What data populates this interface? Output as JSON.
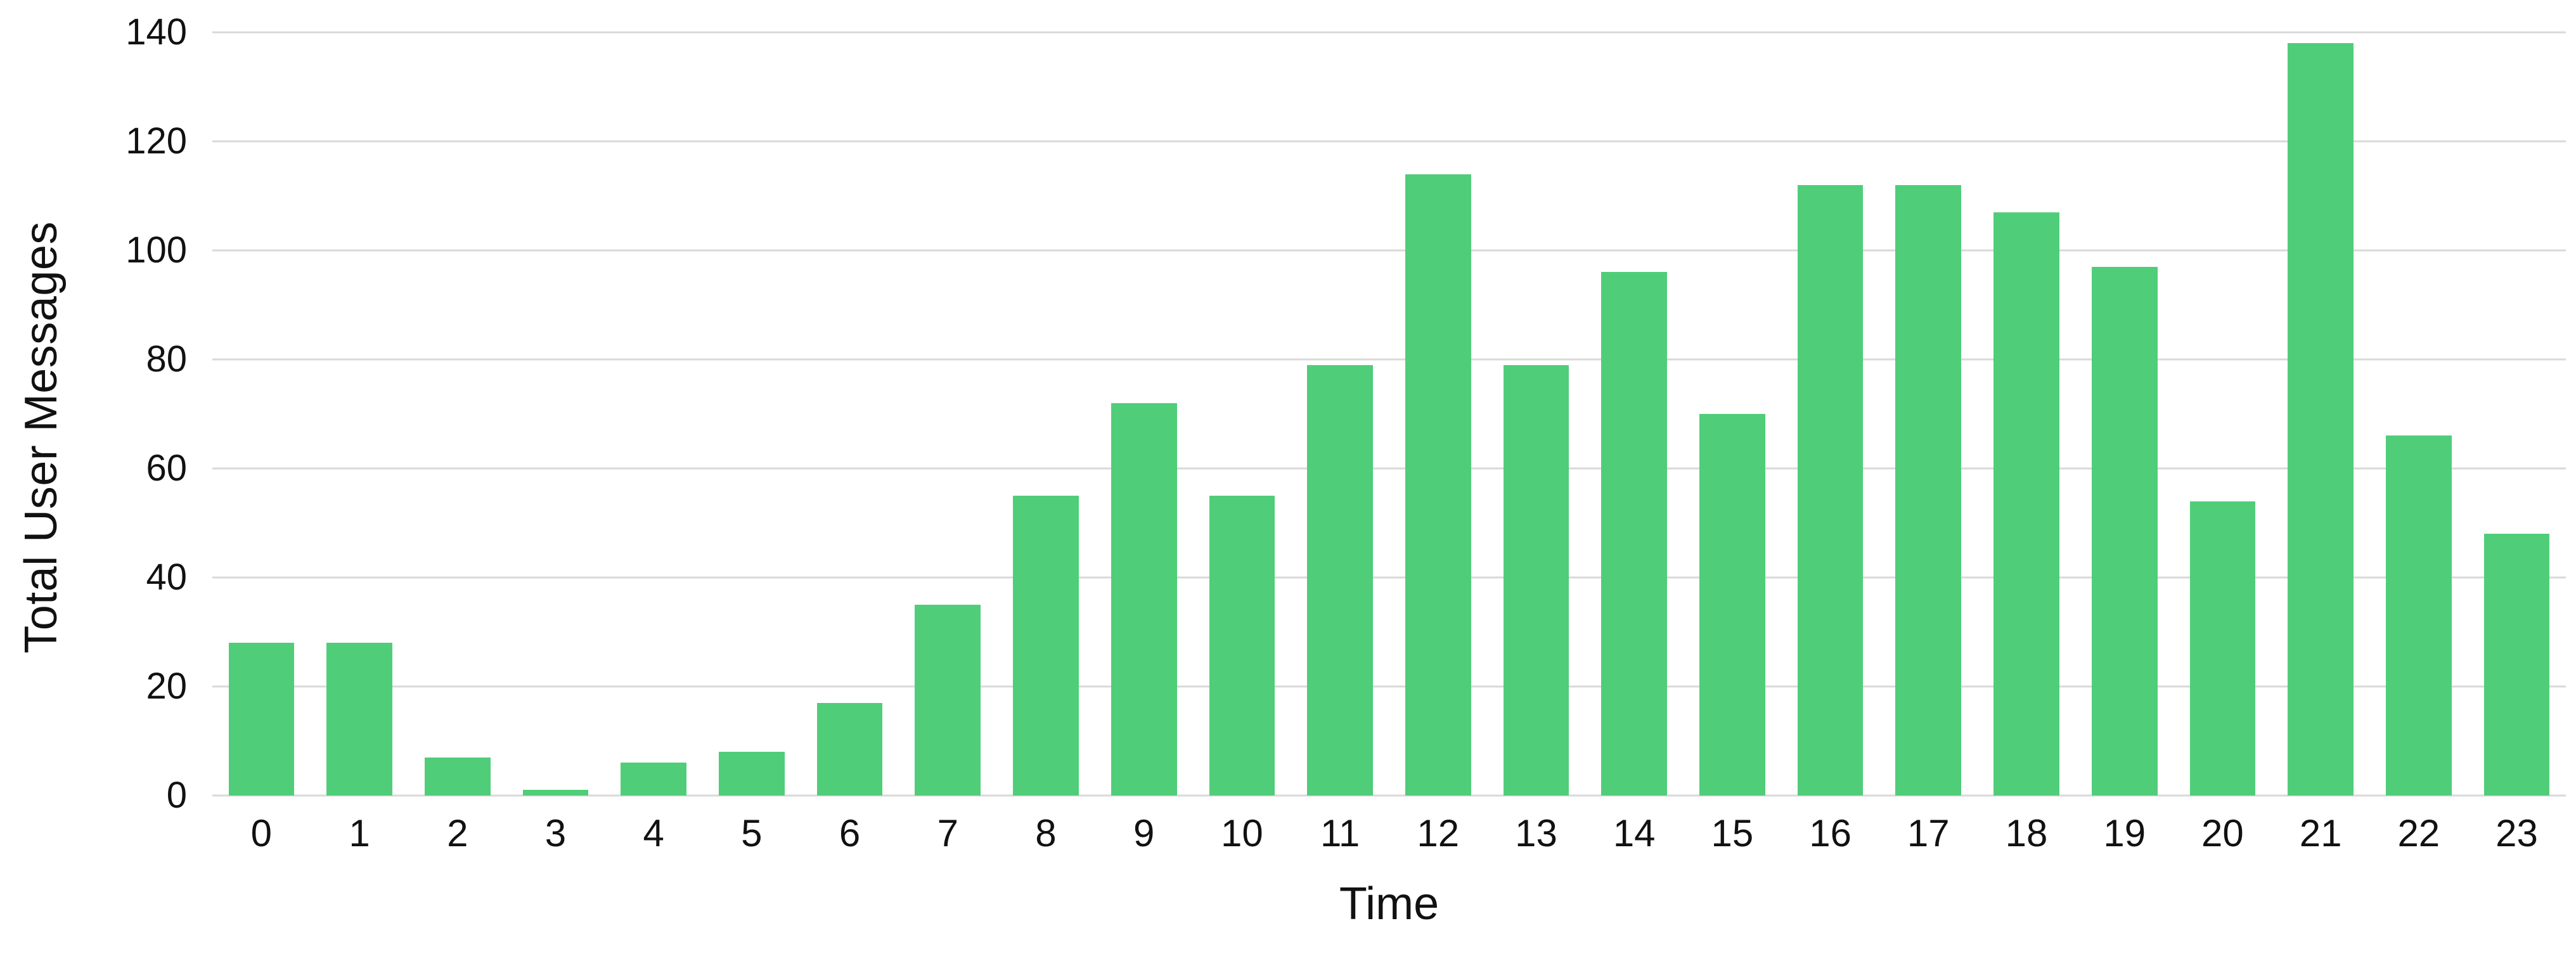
{
  "chart_data": {
    "type": "bar",
    "title": "",
    "xlabel": "Time",
    "ylabel": "Total User Messages",
    "categories": [
      "0",
      "1",
      "2",
      "3",
      "4",
      "5",
      "6",
      "7",
      "8",
      "9",
      "10",
      "11",
      "12",
      "13",
      "14",
      "15",
      "16",
      "17",
      "18",
      "19",
      "20",
      "21",
      "22",
      "23"
    ],
    "values": [
      28,
      28,
      7,
      1,
      6,
      8,
      17,
      35,
      55,
      72,
      55,
      79,
      114,
      79,
      96,
      70,
      112,
      112,
      107,
      97,
      54,
      138,
      66,
      48
    ],
    "ylim": [
      0,
      140
    ],
    "y_ticks": [
      0,
      20,
      40,
      60,
      80,
      100,
      120,
      140
    ],
    "grid": true,
    "legend": false,
    "layout": {
      "legend_position": "none",
      "gridlines": "horizontal-only"
    },
    "colors": {
      "bar": "#50CD78",
      "gridline": "#D9D9D9",
      "text": "#111111",
      "background": "#FFFFFF"
    }
  }
}
